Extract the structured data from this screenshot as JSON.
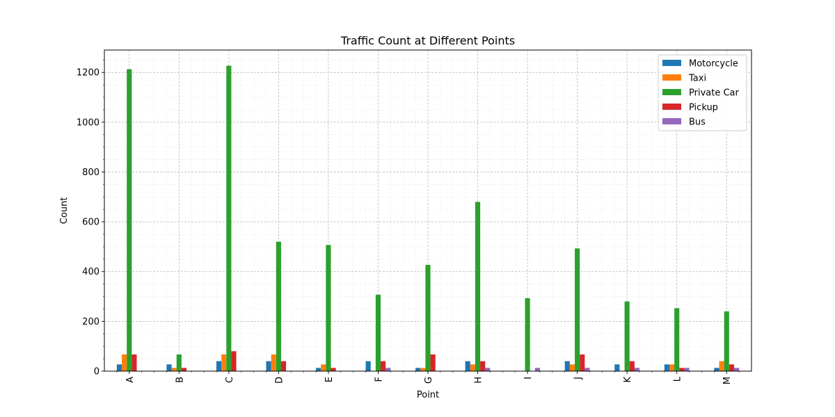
{
  "chart_data": {
    "type": "bar",
    "title": "Traffic Count at Different Points",
    "xlabel": "Point",
    "ylabel": "Count",
    "categories": [
      "A",
      "B",
      "C",
      "D",
      "E",
      "F",
      "G",
      "H",
      "I",
      "J",
      "K",
      "L",
      "M"
    ],
    "ylim": [
      0,
      1290
    ],
    "yticks": [
      0,
      200,
      400,
      600,
      800,
      1000,
      1200
    ],
    "grid": "on (major and minor)",
    "legend_position": "top-right",
    "series": [
      {
        "name": "Motorcycle",
        "color": "#1f77b4",
        "values": [
          27,
          27,
          40,
          40,
          13,
          40,
          13,
          40,
          0,
          40,
          27,
          27,
          13
        ]
      },
      {
        "name": "Taxi",
        "color": "#ff7f0e",
        "values": [
          67,
          13,
          67,
          67,
          27,
          0,
          13,
          27,
          0,
          27,
          0,
          27,
          40
        ]
      },
      {
        "name": "Private Car",
        "color": "#2ca02c",
        "values": [
          1213,
          67,
          1227,
          520,
          507,
          307,
          427,
          680,
          293,
          493,
          280,
          253,
          240
        ]
      },
      {
        "name": "Pickup",
        "color": "#d62728",
        "values": [
          67,
          13,
          80,
          40,
          13,
          40,
          67,
          40,
          0,
          67,
          40,
          13,
          27
        ]
      },
      {
        "name": "Bus",
        "color": "#9467bd",
        "values": [
          0,
          0,
          0,
          0,
          0,
          13,
          0,
          13,
          13,
          13,
          13,
          13,
          13
        ]
      }
    ]
  }
}
